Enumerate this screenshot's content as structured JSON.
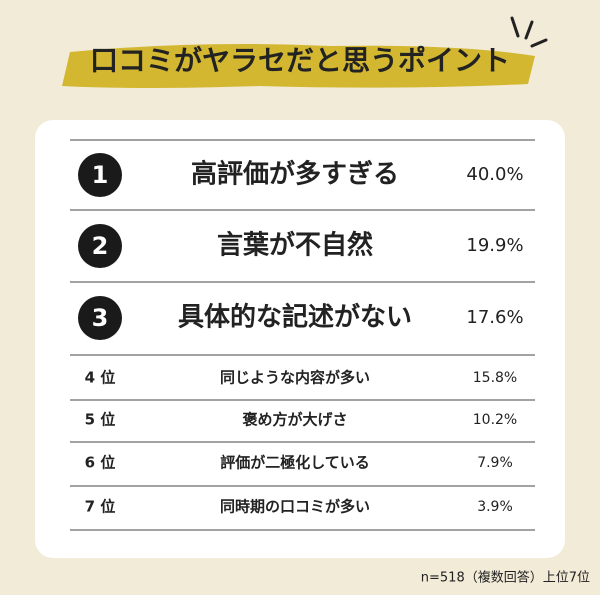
{
  "title": "口コミがヤラセだと思うポイント",
  "ranking": [
    {
      "rank": "1",
      "item": "高評価が多すぎる",
      "share": "40.0%"
    },
    {
      "rank": "2",
      "item": "言葉が不自然",
      "share": "19.9%"
    },
    {
      "rank": "3",
      "item": "具体的な記述がない",
      "share": "17.6%"
    },
    {
      "rank": "4 位",
      "item": "同じような内容が多い",
      "share": "15.8%"
    },
    {
      "rank": "5 位",
      "item": "褒め方が大げさ",
      "share": "10.2%"
    },
    {
      "rank": "6 位",
      "item": "評価が二極化している",
      "share": "7.9%"
    },
    {
      "rank": "7 位",
      "item": "同時期の口コミが多い",
      "share": "3.9%"
    }
  ],
  "footnote": "n=518（複数回答）上位7位"
}
